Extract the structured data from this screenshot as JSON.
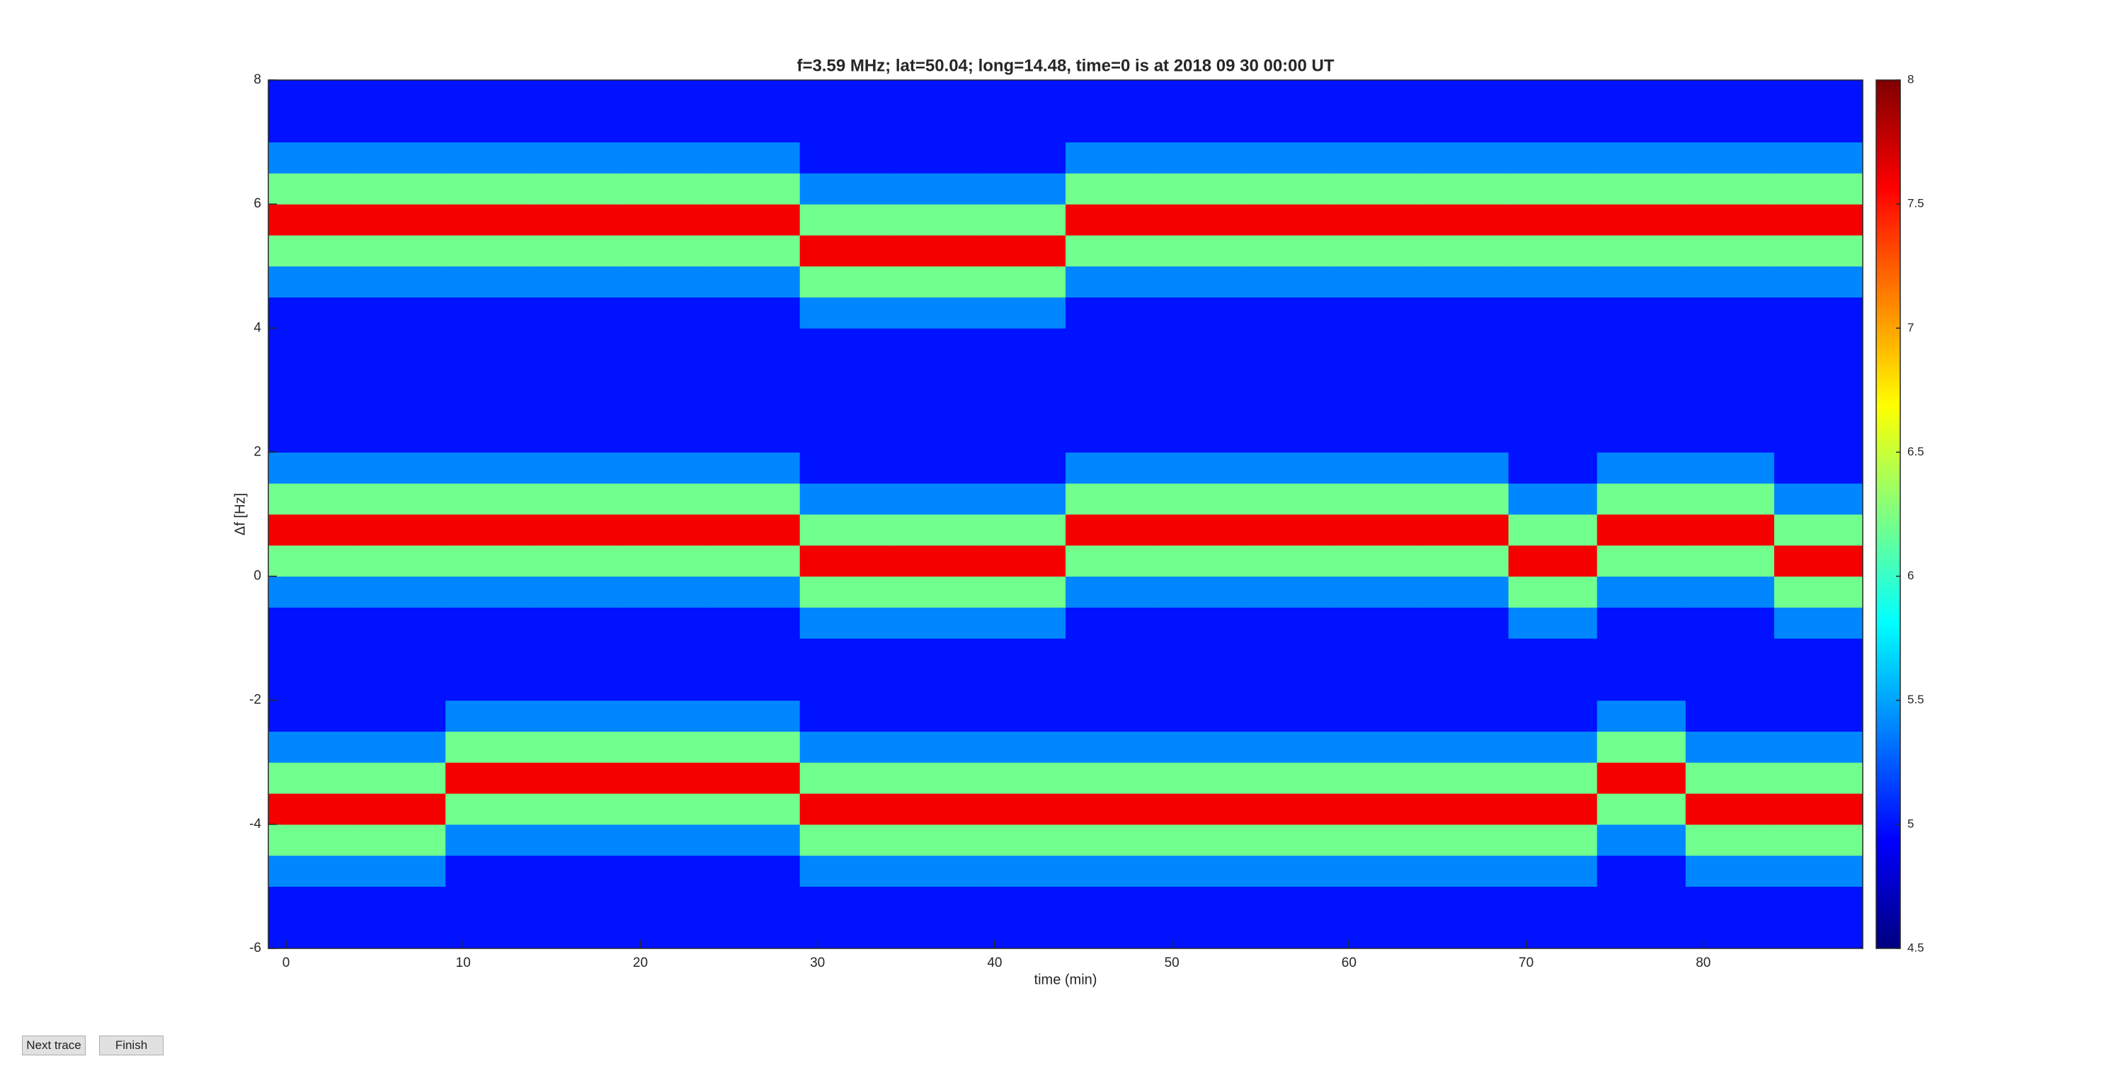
{
  "chart_data": {
    "type": "heatmap",
    "title": "f=3.59 MHz;  lat=50.04; long=14.48, time=0 is at 2018 09 30 00:00 UT",
    "x_label": "time (min)",
    "y_label": "Δf [Hz]",
    "xlim": [
      -1,
      89
    ],
    "xticks": [
      0,
      10,
      20,
      30,
      40,
      50,
      60,
      70,
      80
    ],
    "ylim": [
      -6,
      8
    ],
    "yticks": [
      -6,
      -4,
      -2,
      0,
      2,
      4,
      6,
      8
    ],
    "colormap": "jet",
    "clim": [
      4.5,
      8
    ],
    "cticks": [
      4.5,
      5,
      5.5,
      6,
      6.5,
      7,
      7.5,
      8
    ],
    "x_bins": [
      -1,
      4,
      9,
      14,
      19,
      24,
      29,
      34,
      39,
      44,
      49,
      54,
      59,
      64,
      69,
      74,
      79,
      84,
      89
    ],
    "y_bins": [
      -6,
      -5.5,
      -5,
      -4.5,
      -4,
      -3.5,
      -3,
      -2.5,
      -2,
      -1.5,
      -1,
      -0.5,
      0,
      0.5,
      1,
      1.5,
      2,
      2.5,
      3,
      3.5,
      4,
      4.5,
      5,
      5.5,
      6,
      6.5,
      7,
      7.5,
      8
    ],
    "z": [
      [
        5,
        5,
        5,
        5,
        5,
        5,
        5,
        5,
        5,
        5,
        5,
        5,
        5,
        5,
        5,
        5,
        5,
        5
      ],
      [
        5,
        5,
        5,
        5,
        5,
        5,
        5,
        5,
        5,
        5,
        5,
        5,
        5,
        5,
        5,
        5,
        5,
        5
      ],
      [
        5.4,
        5.4,
        5,
        5,
        5,
        5,
        5.4,
        5.4,
        5.4,
        5.4,
        5.4,
        5.4,
        5.4,
        5.4,
        5.4,
        5,
        5.4,
        5.4
      ],
      [
        6.2,
        6.2,
        5.4,
        5.4,
        5.4,
        5.4,
        6.2,
        6.2,
        6.2,
        6.2,
        6.2,
        6.2,
        6.2,
        6.2,
        6.2,
        5.4,
        6.2,
        6.2
      ],
      [
        7.6,
        7.6,
        6.2,
        6.2,
        6.2,
        6.2,
        7.6,
        7.6,
        7.6,
        7.6,
        7.6,
        7.6,
        7.6,
        7.6,
        7.6,
        6.2,
        7.6,
        7.6
      ],
      [
        6.2,
        6.2,
        7.6,
        7.6,
        7.6,
        7.6,
        6.2,
        6.2,
        6.2,
        6.2,
        6.2,
        6.2,
        6.2,
        6.2,
        6.2,
        7.6,
        6.2,
        6.2
      ],
      [
        5.4,
        5.4,
        6.2,
        6.2,
        6.2,
        6.2,
        5.4,
        5.4,
        5.4,
        5.4,
        5.4,
        5.4,
        5.4,
        5.4,
        5.4,
        6.2,
        5.4,
        5.4
      ],
      [
        5,
        5,
        5.4,
        5.4,
        5.4,
        5.4,
        5,
        5,
        5,
        5,
        5,
        5,
        5,
        5,
        5,
        5.4,
        5,
        5
      ],
      [
        5,
        5,
        5,
        5,
        5,
        5,
        5,
        5,
        5,
        5,
        5,
        5,
        5,
        5,
        5,
        5,
        5,
        5
      ],
      [
        5,
        5,
        5,
        5,
        5,
        5,
        5,
        5,
        5,
        5,
        5,
        5,
        5,
        5,
        5,
        5,
        5,
        5
      ],
      [
        5,
        5,
        5,
        5,
        5,
        5,
        5.4,
        5.4,
        5.4,
        5,
        5,
        5,
        5,
        5,
        5.4,
        5,
        5,
        5.4
      ],
      [
        5.4,
        5.4,
        5.4,
        5.4,
        5.4,
        5.4,
        6.2,
        6.2,
        6.2,
        5.4,
        5.4,
        5.4,
        5.4,
        5.4,
        6.2,
        5.4,
        5.4,
        6.2
      ],
      [
        6.2,
        6.2,
        6.2,
        6.2,
        6.2,
        6.2,
        7.6,
        7.6,
        7.6,
        6.2,
        6.2,
        6.2,
        6.2,
        6.2,
        7.6,
        6.2,
        6.2,
        7.6
      ],
      [
        7.6,
        7.6,
        7.6,
        7.6,
        7.6,
        7.6,
        6.2,
        6.2,
        6.2,
        7.6,
        7.6,
        7.6,
        7.6,
        7.6,
        6.2,
        7.6,
        7.6,
        6.2
      ],
      [
        6.2,
        6.2,
        6.2,
        6.2,
        6.2,
        6.2,
        5.4,
        5.4,
        5.4,
        6.2,
        6.2,
        6.2,
        6.2,
        6.2,
        5.4,
        6.2,
        6.2,
        5.4
      ],
      [
        5.4,
        5.4,
        5.4,
        5.4,
        5.4,
        5.4,
        5,
        5,
        5,
        5.4,
        5.4,
        5.4,
        5.4,
        5.4,
        5,
        5.4,
        5.4,
        5
      ],
      [
        5,
        5,
        5,
        5,
        5,
        5,
        5,
        5,
        5,
        5,
        5,
        5,
        5,
        5,
        5,
        5,
        5,
        5
      ],
      [
        5,
        5,
        5,
        5,
        5,
        5,
        5,
        5,
        5,
        5,
        5,
        5,
        5,
        5,
        5,
        5,
        5,
        5
      ],
      [
        5,
        5,
        5,
        5,
        5,
        5,
        5,
        5,
        5,
        5,
        5,
        5,
        5,
        5,
        5,
        5,
        5,
        5
      ],
      [
        5,
        5,
        5,
        5,
        5,
        5,
        5,
        5,
        5,
        5,
        5,
        5,
        5,
        5,
        5,
        5,
        5,
        5
      ],
      [
        5,
        5,
        5,
        5,
        5,
        5,
        5.4,
        5.4,
        5.4,
        5,
        5,
        5,
        5,
        5,
        5,
        5,
        5,
        5
      ],
      [
        5.4,
        5.4,
        5.4,
        5.4,
        5.4,
        5.4,
        6.2,
        6.2,
        6.2,
        5.4,
        5.4,
        5.4,
        5.4,
        5.4,
        5.4,
        5.4,
        5.4,
        5.4
      ],
      [
        6.2,
        6.2,
        6.2,
        6.2,
        6.2,
        6.2,
        7.6,
        7.6,
        7.6,
        6.2,
        6.2,
        6.2,
        6.2,
        6.2,
        6.2,
        6.2,
        6.2,
        6.2
      ],
      [
        7.6,
        7.6,
        7.6,
        7.6,
        7.6,
        7.6,
        6.2,
        6.2,
        6.2,
        7.6,
        7.6,
        7.6,
        7.6,
        7.6,
        7.6,
        7.6,
        7.6,
        7.6
      ],
      [
        6.2,
        6.2,
        6.2,
        6.2,
        6.2,
        6.2,
        5.4,
        5.4,
        5.4,
        6.2,
        6.2,
        6.2,
        6.2,
        6.2,
        6.2,
        6.2,
        6.2,
        6.2
      ],
      [
        5.4,
        5.4,
        5.4,
        5.4,
        5.4,
        5.4,
        5,
        5,
        5,
        5.4,
        5.4,
        5.4,
        5.4,
        5.4,
        5.4,
        5.4,
        5.4,
        5.4
      ],
      [
        5,
        5,
        5,
        5,
        5,
        5,
        5,
        5,
        5,
        5,
        5,
        5,
        5,
        5,
        5,
        5,
        5,
        5
      ],
      [
        5,
        5,
        5,
        5,
        5,
        5,
        5,
        5,
        5,
        5,
        5,
        5,
        5,
        5,
        5,
        5,
        5,
        5
      ]
    ]
  },
  "buttons": [
    "Next trace",
    "Finish"
  ]
}
